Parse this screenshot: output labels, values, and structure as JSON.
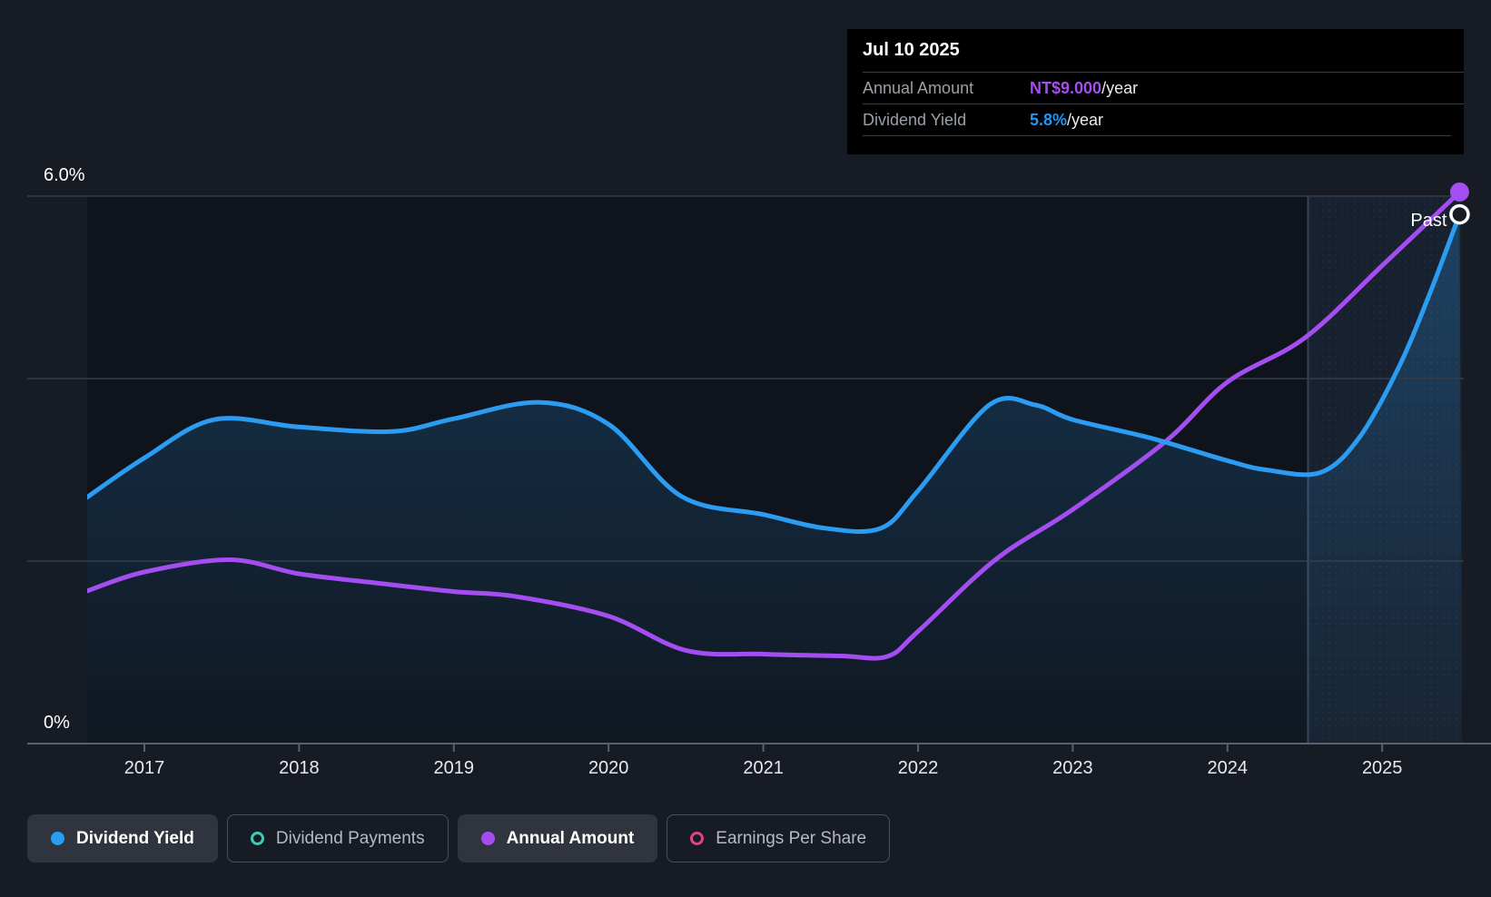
{
  "page": {
    "background": "#161b24"
  },
  "tooltip": {
    "date": "Jul 10 2025",
    "rows": [
      {
        "label": "Annual Amount",
        "value": "NT$9.000",
        "suffix": "/year",
        "value_color": "#a44ef2"
      },
      {
        "label": "Dividend Yield",
        "value": "5.8%",
        "suffix": "/year",
        "value_color": "#2196f3"
      }
    ]
  },
  "annotations": {
    "past_label": "Past"
  },
  "legend": {
    "items": [
      {
        "label": "Dividend Yield",
        "marker": "dot",
        "color": "#2b9cf2",
        "active": true
      },
      {
        "label": "Dividend Payments",
        "marker": "ring",
        "color": "#43c8b4",
        "active": false
      },
      {
        "label": "Annual Amount",
        "marker": "dot",
        "color": "#a44ef2",
        "active": true
      },
      {
        "label": "Earnings Per Share",
        "marker": "ring",
        "color": "#d8468c",
        "active": false
      }
    ]
  },
  "chart_data": {
    "type": "line",
    "x_axis": {
      "labels": [
        "2017",
        "2018",
        "2019",
        "2020",
        "2021",
        "2022",
        "2023",
        "2024",
        "2025"
      ],
      "range_years": [
        2016.63,
        2025.51
      ]
    },
    "y_axis": {
      "top_label": "6.0%",
      "bottom_label": "0%",
      "unit": "%",
      "range": [
        0,
        6.0
      ],
      "gridlines_pct": [
        6.0,
        4.0,
        2.0
      ]
    },
    "past_divider_year": 2024.52,
    "colors": {
      "grid": "#363c46",
      "axis": "#5c6169",
      "plot_bg": "#0f141c",
      "past_overlay": "rgba(96,154,212,0.10)",
      "divider": "rgba(140,180,225,0.28)",
      "area_top": "rgba(38,125,195,0.34)",
      "area_bottom": "rgba(38,125,195,0.03)",
      "tick_label": "#e8eaee",
      "y_label": "#ffffff",
      "past_text": "#ffffff"
    },
    "series": [
      {
        "name": "Dividend Yield",
        "color": "#2b9cf2",
        "unit": "%",
        "visible": true,
        "area": true,
        "marker_style": "hollow-white",
        "end_value_label": "5.8%",
        "points": [
          [
            2016.63,
            2.7
          ],
          [
            2017,
            3.13
          ],
          [
            2017.45,
            3.55
          ],
          [
            2018,
            3.47
          ],
          [
            2018.6,
            3.42
          ],
          [
            2019,
            3.56
          ],
          [
            2019.55,
            3.74
          ],
          [
            2020,
            3.5
          ],
          [
            2020.47,
            2.71
          ],
          [
            2021,
            2.51
          ],
          [
            2021.4,
            2.36
          ],
          [
            2021.76,
            2.36
          ],
          [
            2022,
            2.77
          ],
          [
            2022.46,
            3.71
          ],
          [
            2022.76,
            3.71
          ],
          [
            2023,
            3.55
          ],
          [
            2023.5,
            3.35
          ],
          [
            2024,
            3.1
          ],
          [
            2024.25,
            3.0
          ],
          [
            2024.6,
            2.97
          ],
          [
            2024.85,
            3.35
          ],
          [
            2025.1,
            4.1
          ],
          [
            2025.3,
            4.9
          ],
          [
            2025.5,
            5.8
          ]
        ]
      },
      {
        "name": "Annual Amount",
        "color": "#a44ef2",
        "unit": "NT$/year",
        "visible": true,
        "area": false,
        "marker_style": "solid",
        "end_value_label": "NT$9.000",
        "points": [
          [
            2016.63,
            2.49
          ],
          [
            2017,
            2.8
          ],
          [
            2017.55,
            3.0
          ],
          [
            2018,
            2.77
          ],
          [
            2018.5,
            2.62
          ],
          [
            2019,
            2.48
          ],
          [
            2019.4,
            2.4
          ],
          [
            2020,
            2.08
          ],
          [
            2020.5,
            1.52
          ],
          [
            2021,
            1.46
          ],
          [
            2021.5,
            1.43
          ],
          [
            2021.8,
            1.42
          ],
          [
            2022,
            1.83
          ],
          [
            2022.5,
            3.0
          ],
          [
            2023,
            3.82
          ],
          [
            2023.6,
            4.93
          ],
          [
            2024,
            5.9
          ],
          [
            2024.5,
            6.62
          ],
          [
            2025,
            7.8
          ],
          [
            2025.5,
            9.0
          ]
        ]
      },
      {
        "name": "Dividend Payments",
        "color": "#43c8b4",
        "visible": false,
        "points": []
      },
      {
        "name": "Earnings Per Share",
        "color": "#d8468c",
        "visible": false,
        "points": []
      }
    ]
  }
}
